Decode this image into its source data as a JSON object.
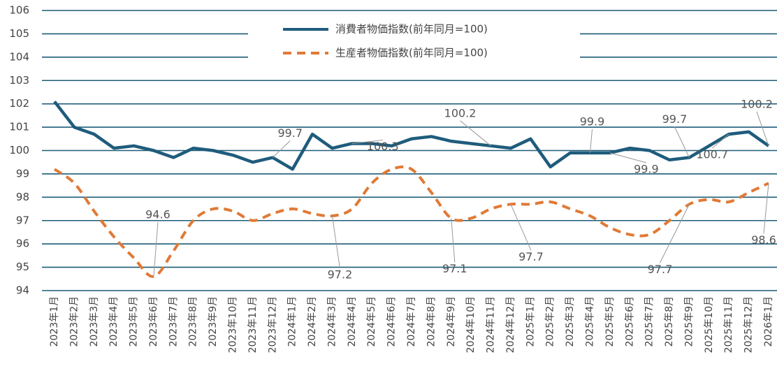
{
  "chart_data": {
    "type": "line",
    "categories": [
      "2023年1月",
      "2023年2月",
      "2023年3月",
      "2023年4月",
      "2023年5月",
      "2023年6月",
      "2023年7月",
      "2023年8月",
      "2023年9月",
      "2023年10月",
      "2023年11月",
      "2023年12月",
      "2024年1月",
      "2024年2月",
      "2024年3月",
      "2024年4月",
      "2024年5月",
      "2024年6月",
      "2024年7月",
      "2024年8月",
      "2024年9月",
      "2024年10月",
      "2024年11月",
      "2024年12月",
      "2025年1月",
      "2025年2月",
      "2025年3月",
      "2025年4月",
      "2025年5月",
      "2025年6月",
      "2025年7月",
      "2025年8月",
      "2025年9月",
      "2025年10月",
      "2025年11月",
      "2025年12月",
      "2026年1月"
    ],
    "series": [
      {
        "name": "消費者物価指数(前年同月=100)",
        "color": "#1f5c7c",
        "smooth": false,
        "values": [
          102.1,
          101.0,
          100.7,
          100.1,
          100.2,
          100.0,
          99.7,
          100.1,
          100.0,
          99.8,
          99.5,
          99.7,
          99.2,
          100.7,
          100.1,
          100.3,
          100.3,
          100.2,
          100.5,
          100.6,
          100.4,
          100.3,
          100.2,
          100.1,
          100.5,
          99.3,
          99.9,
          99.9,
          99.9,
          100.1,
          100.0,
          99.6,
          99.7,
          100.2,
          100.7,
          100.8,
          100.2
        ],
        "value_labels": [
          null,
          null,
          null,
          null,
          null,
          null,
          null,
          null,
          null,
          null,
          null,
          "99.7",
          null,
          null,
          null,
          "100.3",
          null,
          null,
          null,
          null,
          null,
          null,
          "100.2",
          null,
          null,
          null,
          null,
          "99.9",
          "99.9",
          null,
          null,
          null,
          "99.7",
          null,
          "100.7",
          null,
          "100.2"
        ]
      },
      {
        "name": "生産者物価指数(前年同月=100)",
        "color": "#e07a36",
        "smooth": true,
        "dashed": true,
        "values": [
          99.2,
          98.6,
          97.4,
          96.3,
          95.4,
          94.6,
          95.7,
          97.0,
          97.5,
          97.4,
          97.0,
          97.3,
          97.5,
          97.3,
          97.2,
          97.5,
          98.6,
          99.2,
          99.2,
          98.2,
          97.1,
          97.1,
          97.5,
          97.7,
          97.7,
          97.8,
          97.5,
          97.2,
          96.7,
          96.4,
          96.4,
          97.0,
          97.7,
          97.9,
          97.8,
          98.2,
          98.6
        ],
        "value_labels": [
          null,
          null,
          null,
          null,
          null,
          "94.6",
          null,
          null,
          null,
          null,
          null,
          null,
          null,
          null,
          "97.2",
          null,
          null,
          null,
          null,
          null,
          "97.1",
          null,
          null,
          "97.7",
          null,
          null,
          null,
          null,
          null,
          null,
          null,
          null,
          "97.7",
          null,
          null,
          null,
          "98.6"
        ]
      }
    ],
    "ylim": [
      94,
      106
    ],
    "yticks": [
      94,
      95,
      96,
      97,
      98,
      99,
      100,
      101,
      102,
      103,
      104,
      105,
      106
    ],
    "grid": true,
    "legend": "top"
  }
}
